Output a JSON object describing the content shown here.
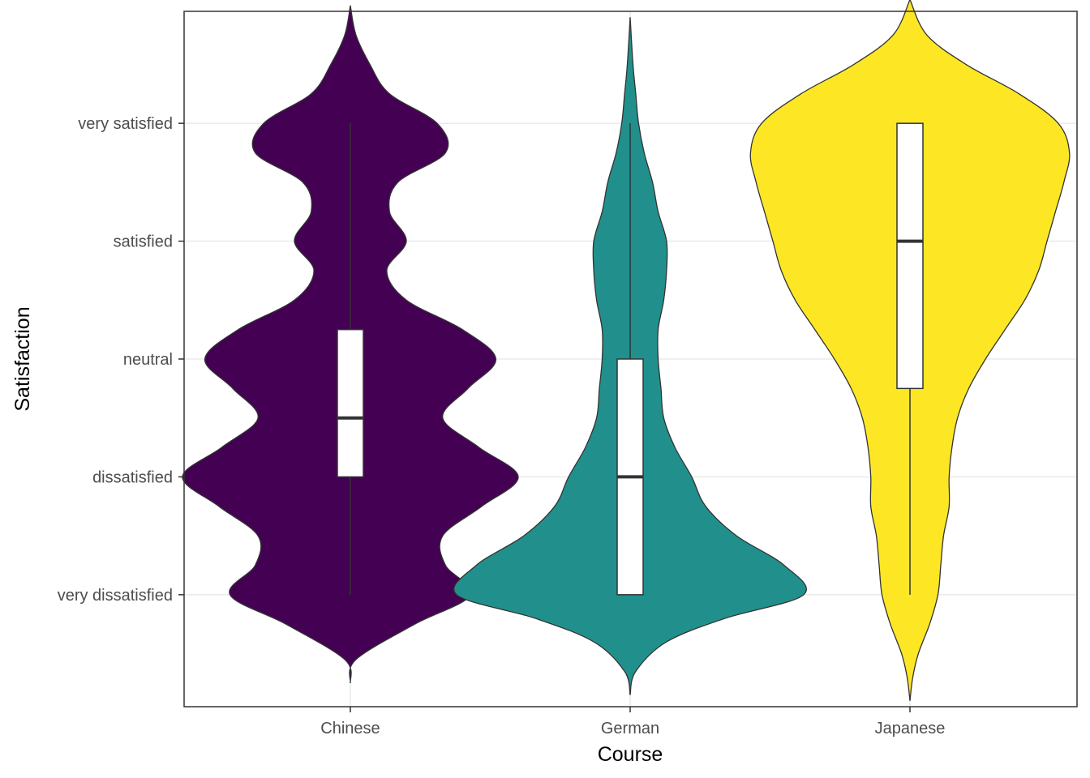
{
  "chart_data": {
    "type": "violin",
    "title": "",
    "xlabel": "Course",
    "ylabel": "Satisfaction",
    "categories": [
      "Chinese",
      "German",
      "Japanese"
    ],
    "y_levels": [
      "very dissatisfied",
      "dissatisfied",
      "neutral",
      "satisfied",
      "very satisfied"
    ],
    "ylim": [
      0.05,
      5.95
    ],
    "grid": true,
    "legend": "none",
    "colors": [
      "#440154",
      "#21908C",
      "#FDE725"
    ],
    "series": [
      {
        "name": "Chinese",
        "box": {
          "min": 1,
          "q1": 2,
          "median": 2.5,
          "q3": 3.25,
          "max": 5
        },
        "violin": {
          "y": [
            0.25,
            0.45,
            0.75,
            1.0,
            1.25,
            1.5,
            1.75,
            2.0,
            2.25,
            2.5,
            2.75,
            3.0,
            3.25,
            3.5,
            3.75,
            4.0,
            4.25,
            4.5,
            4.75,
            5.0,
            5.25,
            5.5,
            5.75,
            6.0
          ],
          "halfwidth": [
            0.0,
            0.02,
            0.23,
            0.43,
            0.34,
            0.33,
            0.47,
            0.6,
            0.46,
            0.33,
            0.42,
            0.52,
            0.4,
            0.2,
            0.13,
            0.2,
            0.14,
            0.17,
            0.34,
            0.31,
            0.14,
            0.07,
            0.02,
            0.0
          ]
        }
      },
      {
        "name": "German",
        "box": {
          "min": 1,
          "q1": 1,
          "median": 2,
          "q3": 3,
          "max": 5
        },
        "violin": {
          "y": [
            0.15,
            0.35,
            0.6,
            0.8,
            1.0,
            1.25,
            1.5,
            1.75,
            2.0,
            2.25,
            2.5,
            2.75,
            3.0,
            3.25,
            3.5,
            3.75,
            4.0,
            4.25,
            4.5,
            4.75,
            5.0,
            5.25,
            5.5,
            5.9
          ],
          "halfwidth": [
            0.0,
            0.02,
            0.13,
            0.34,
            0.62,
            0.55,
            0.38,
            0.27,
            0.22,
            0.16,
            0.12,
            0.11,
            0.1,
            0.1,
            0.12,
            0.13,
            0.13,
            0.1,
            0.08,
            0.05,
            0.03,
            0.02,
            0.01,
            0.0
          ]
        }
      },
      {
        "name": "Japanese",
        "box": {
          "min": 1,
          "q1": 2.75,
          "median": 4,
          "q3": 5,
          "max": 5
        },
        "violin": {
          "y": [
            0.1,
            0.3,
            0.5,
            0.75,
            1.0,
            1.25,
            1.5,
            1.75,
            2.0,
            2.25,
            2.5,
            2.75,
            3.0,
            3.25,
            3.5,
            3.75,
            4.0,
            4.25,
            4.5,
            4.75,
            5.0,
            5.25,
            5.5,
            5.75,
            6.05
          ],
          "halfwidth": [
            0.0,
            0.01,
            0.03,
            0.07,
            0.1,
            0.11,
            0.12,
            0.14,
            0.14,
            0.15,
            0.17,
            0.21,
            0.27,
            0.34,
            0.41,
            0.46,
            0.49,
            0.52,
            0.55,
            0.57,
            0.53,
            0.39,
            0.2,
            0.06,
            0.0
          ]
        }
      }
    ]
  }
}
